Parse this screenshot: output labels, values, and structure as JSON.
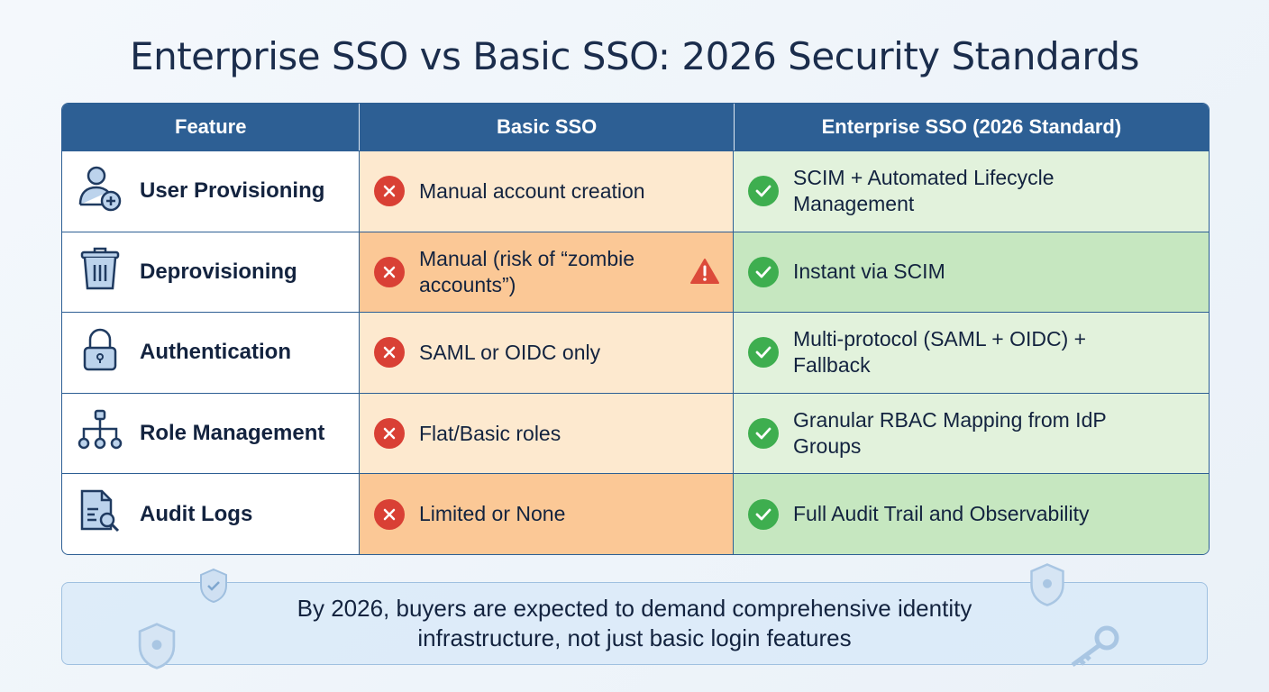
{
  "title": "Enterprise SSO vs Basic SSO: 2026 Security Standards",
  "table": {
    "headers": [
      "Feature",
      "Basic SSO",
      "Enterprise SSO (2026 Standard)"
    ],
    "rows": [
      {
        "feature": "User Provisioning",
        "icon": "user-add-icon",
        "basic": "Manual account creation",
        "enterprise": "SCIM + Automated Lifecycle Management"
      },
      {
        "feature": "Deprovisioning",
        "icon": "trash-icon",
        "basic": "Manual (risk of “zombie accounts”)",
        "enterprise": "Instant via SCIM",
        "warning": true
      },
      {
        "feature": "Authentication",
        "icon": "lock-icon",
        "basic": "SAML or OIDC only",
        "enterprise": "Multi-protocol (SAML + OIDC) + Fallback"
      },
      {
        "feature": "Role Management",
        "icon": "hierarchy-icon",
        "basic": "Flat/Basic roles",
        "enterprise": "Granular RBAC Mapping from IdP Groups"
      },
      {
        "feature": "Audit Logs",
        "icon": "document-search-icon",
        "basic": "Limited or None",
        "enterprise": "Full Audit Trail and Observability"
      }
    ]
  },
  "footer": "By 2026, buyers are expected to demand comprehensive identity infrastructure, not just basic login features",
  "colors": {
    "header": "#2d5f94",
    "cross": "#d94035",
    "check": "#3eae4f",
    "basic_bg": "#fde9cf",
    "enterprise_bg": "#e2f2dc"
  }
}
